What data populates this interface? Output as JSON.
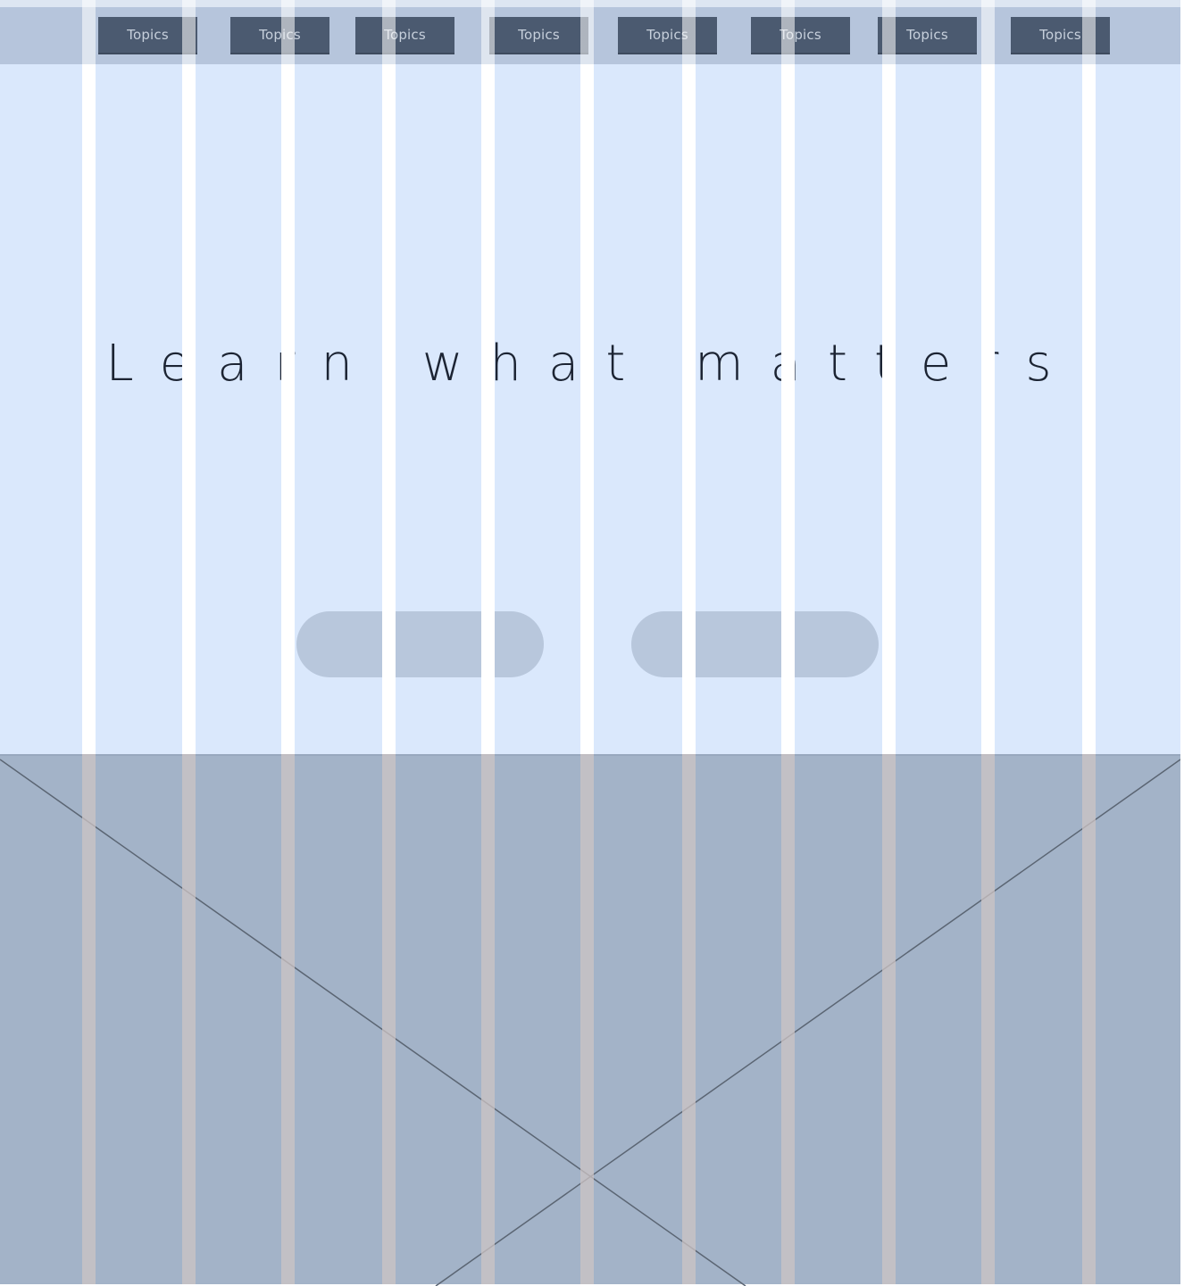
{
  "nav": {
    "items": [
      {
        "label": "Topics"
      },
      {
        "label": "Topics"
      },
      {
        "label": "Topics"
      },
      {
        "label": "Topics"
      },
      {
        "label": "Topics"
      },
      {
        "label": "Topics"
      },
      {
        "label": "Topics"
      },
      {
        "label": "Topics"
      }
    ]
  },
  "hero": {
    "title": "Learn what matters",
    "buttons": [
      {
        "label": ""
      },
      {
        "label": ""
      }
    ]
  },
  "colors": {
    "hero_bg": "#dae8fc",
    "nav_bg": "#b6c5dc",
    "nav_button": "#4b5a70",
    "placeholder_bg": "#a3b3c8",
    "pill": "#b8c7dc"
  }
}
